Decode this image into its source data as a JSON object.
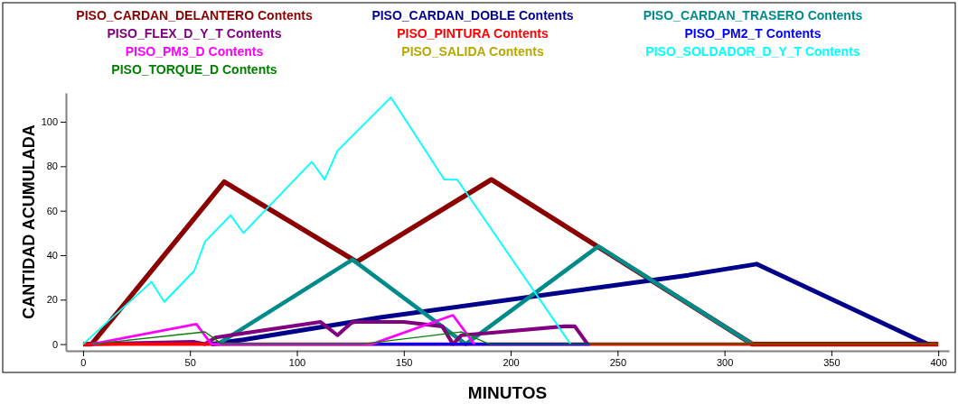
{
  "chart_data": {
    "type": "line",
    "xlabel": "MINUTOS",
    "ylabel": "CANTIDAD ACUMULADA",
    "xlim": [
      -8,
      405
    ],
    "ylim": [
      -3,
      113
    ],
    "xticks": [
      0,
      50,
      100,
      150,
      200,
      250,
      300,
      350,
      400
    ],
    "yticks": [
      0,
      20,
      40,
      60,
      80,
      100
    ],
    "grid": false,
    "legend": "top",
    "marker": "none",
    "line_style": "solid",
    "series": [
      {
        "name": "PISO_CARDAN_DELANTERO Contents",
        "color": "#8b0000",
        "x": [
          0,
          4,
          66,
          128,
          191,
          313,
          400
        ],
        "values": [
          0,
          0,
          73,
          37,
          74,
          0,
          0
        ]
      },
      {
        "name": "PISO_CARDAN_DOBLE Contents",
        "color": "#00008b",
        "x": [
          60,
          75,
          139,
          283,
          315,
          395
        ],
        "values": [
          0,
          2,
          12,
          31,
          36,
          0
        ]
      },
      {
        "name": "PISO_CARDAN_TRASERO Contents",
        "color": "#008b8b",
        "x": [
          63,
          126,
          179,
          241,
          313
        ],
        "values": [
          0,
          38,
          0,
          44,
          0
        ]
      },
      {
        "name": "PISO_FLEX_D_Y_T Contents",
        "color": "#800080",
        "x": [
          2,
          52,
          57,
          62,
          111,
          119,
          126,
          150,
          168,
          173,
          177,
          190,
          225,
          230,
          236
        ],
        "values": [
          0,
          1,
          0,
          3,
          10,
          4,
          10,
          10,
          8,
          0,
          4,
          5,
          8,
          8,
          0
        ]
      },
      {
        "name": "PISO_PINTURA Contents",
        "color": "#ff0000",
        "x": [
          0,
          400
        ],
        "values": [
          0,
          0
        ]
      },
      {
        "name": "PISO_PM2_T Contents",
        "color": "#0000ff",
        "x": [
          60,
          237
        ],
        "values": [
          0,
          0
        ]
      },
      {
        "name": "PISO_PM3_D Contents",
        "color": "#ff00ff",
        "x": [
          4,
          53,
          60,
          135,
          173,
          183
        ],
        "values": [
          0,
          9,
          0,
          0,
          13,
          0
        ]
      },
      {
        "name": "PISO_SALIDA Contents",
        "color": "#b8a800"
      },
      {
        "name": "PISO_SOLDADOR_D_Y_T Contents",
        "color": "#00ffff",
        "x": [
          0,
          32,
          38,
          52,
          57,
          69,
          75,
          107,
          113,
          119,
          144,
          169,
          175,
          228
        ],
        "values": [
          0,
          28,
          19,
          33,
          46,
          58,
          50,
          82,
          74,
          87,
          111,
          74,
          74,
          0
        ]
      },
      {
        "name": "PISO_TORQUE_D Contents",
        "color": "#008000",
        "x": [
          4,
          57,
          65,
          130,
          177,
          190,
          400
        ],
        "values": [
          0,
          5.5,
          0,
          0,
          5.5,
          0,
          0
        ]
      }
    ]
  }
}
